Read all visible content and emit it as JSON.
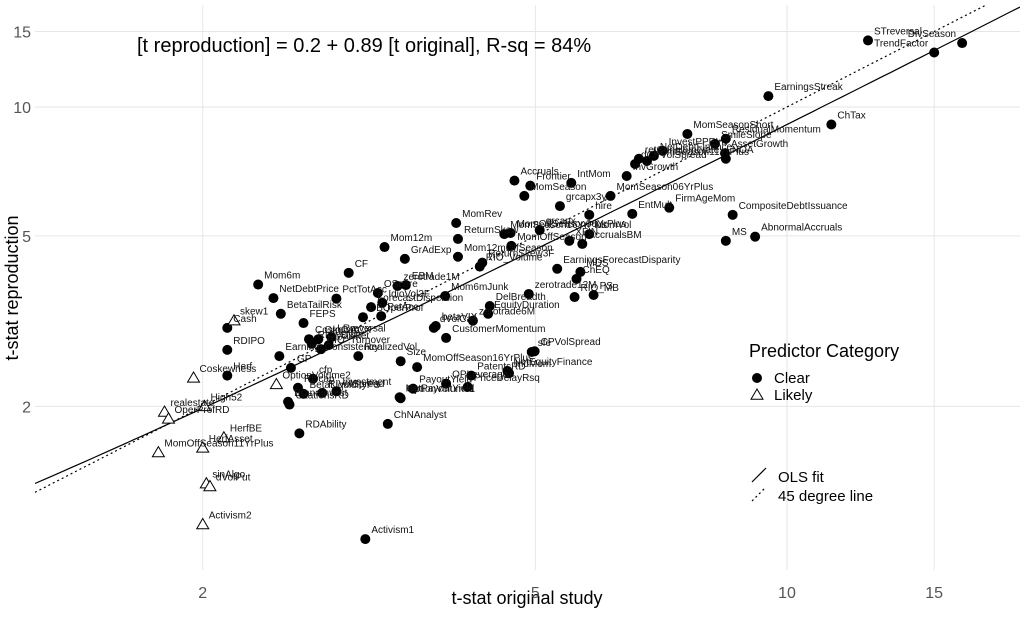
{
  "chart_data": {
    "type": "scatter",
    "log_x": true,
    "log_y": true,
    "grid": true,
    "annotation": "[t reproduction] = 0.2 + 0.89 [t original], R-sq = 84%",
    "x_label": "t-stat original study",
    "y_label": "t-stat reproduction",
    "xlim": [
      1.26,
      19
    ],
    "ylim": [
      0.83,
      17.3
    ],
    "xticks": [
      2,
      5,
      10,
      15
    ],
    "yticks": [
      2,
      5,
      10,
      15
    ],
    "fit": {
      "intercept": 0.2,
      "slope": 0.89
    },
    "legend_title": "Predictor Category",
    "lines": [
      {
        "name": "OLS fit",
        "kind": "fit"
      },
      {
        "name": "45 degree line",
        "kind": "identity"
      }
    ],
    "series": [
      {
        "name": "Clear",
        "marker": "circle",
        "color": "#000000",
        "labels": [
          "STreversal",
          "DivSeason",
          "TrendFactor",
          "EarningsStreak",
          "ChTax",
          "MomSeasonShort",
          "ResidualMomentum",
          "SmileSlope",
          "AssetGrowth",
          "NOA",
          "InvestPPEInv",
          "NetDebtFinance",
          "retConglomerate",
          "MomSeason11YrPlus",
          "InvGrowth",
          "dCPVolSpread",
          "Accruals",
          "Frontier",
          "IntMom",
          "MomSeason",
          "MomSeason06YrPlus",
          "grcapx3y",
          "hire",
          "FirmAgeMom",
          "EntMult",
          "CompositeDebtIssuance",
          "MS",
          "AbnormalAccruals",
          "MomVol",
          "MomOffSeason06YrPlus",
          "MomRev",
          "MomSeason16YrPlus",
          "grcapx",
          "ReturnSkew",
          "AccrualsBM",
          "XFIN",
          "Mom12m",
          "Mom12mOffSeason",
          "MomOffSeason",
          "ReturnSkew3F",
          "GrAdExp",
          "CF",
          "EBM",
          "PctTotAcc",
          "Mom6m",
          "NetDebtPrice",
          "BetaTailRisk",
          "OScore",
          "IdioVol3F",
          "CBOperProf",
          "PctAcc",
          "ForecastDispersion",
          "RIO_Volume",
          "EarningsForecastDisparity",
          "MDS",
          "ChEQ",
          "Mom6mJunk",
          "DelBreadth",
          "zerotrade12M",
          "RIO_MB",
          "PS",
          "EquityDuration",
          "zerotrade6M",
          "zerotrade1M",
          "betaVIX",
          "FEPS",
          "OrgCap",
          "CoskewACX",
          "LRreversal",
          "Cash",
          "RDIPO",
          "dVolCall",
          "CustomerMomentum",
          "CPVolSpread",
          "RIO_Disp",
          "RIO_Turnover",
          "MaxRet",
          "EarningsConsistency",
          "GP",
          "Herf",
          "RealizedVol",
          "cfp",
          "MomOffSeason16YrPlus",
          "NetEquityFinance",
          "sfe",
          "IndMom",
          "Size",
          "PriceDelayRsq",
          "OPLeverage",
          "PatentsRD",
          "RDcap",
          "Investment",
          "NetPayoutYield",
          "PayoutYield",
          "BrandInvest",
          "CitationsRD",
          "RIVolSpread",
          "BetaLiquidityPS",
          "RDAbility",
          "ChNAnalyst",
          "OptionVolume1",
          "Activism1"
        ],
        "x": [
          12.5,
          16.2,
          15.0,
          9.5,
          11.3,
          7.6,
          8.45,
          8.2,
          8.43,
          8.45,
          7.1,
          6.93,
          6.65,
          6.8,
          6.43,
          6.58,
          4.72,
          4.93,
          5.52,
          4.85,
          6.15,
          5.35,
          5.8,
          7.23,
          6.53,
          8.61,
          8.45,
          9.16,
          5.8,
          4.67,
          4.02,
          4.59,
          5.06,
          4.04,
          5.69,
          5.49,
          3.3,
          4.04,
          4.68,
          4.32,
          3.49,
          2.99,
          3.5,
          2.89,
          2.33,
          2.43,
          2.48,
          3.24,
          3.28,
          3.11,
          3.27,
          3.18,
          4.29,
          5.31,
          5.66,
          5.6,
          3.9,
          4.41,
          4.91,
          5.57,
          5.87,
          4.39,
          4.21,
          3.42,
          3.8,
          2.64,
          2.75,
          2.68,
          2.85,
          2.14,
          2.14,
          3.78,
          3.91,
          4.99,
          2.7,
          2.77,
          2.83,
          2.47,
          2.55,
          2.14,
          3.07,
          2.71,
          3.61,
          4.63,
          4.95,
          4.65,
          3.45,
          4.15,
          3.91,
          4.19,
          2.6,
          2.89,
          3.44,
          3.57,
          2.53,
          2.54,
          2.78,
          2.64,
          2.61,
          3.33,
          3.45,
          3.13
        ],
        "y": [
          14.3,
          14.1,
          13.4,
          10.6,
          9.1,
          8.65,
          8.43,
          8.2,
          7.8,
          7.57,
          7.9,
          7.69,
          7.57,
          7.48,
          6.9,
          7.36,
          6.73,
          6.55,
          6.65,
          6.2,
          6.2,
          5.87,
          5.6,
          5.82,
          5.63,
          5.6,
          4.87,
          4.98,
          5.05,
          5.08,
          5.36,
          5.05,
          5.16,
          4.92,
          4.79,
          4.87,
          4.71,
          4.47,
          4.74,
          4.33,
          4.42,
          4.1,
          3.84,
          3.57,
          3.85,
          3.58,
          3.29,
          3.68,
          3.49,
          3.23,
          3.25,
          3.41,
          4.24,
          4.19,
          4.12,
          3.97,
          3.62,
          3.43,
          3.66,
          3.6,
          3.64,
          3.29,
          3.17,
          3.82,
          3.08,
          3.13,
          2.87,
          2.87,
          2.9,
          3.05,
          2.71,
          3.05,
          2.89,
          2.69,
          2.8,
          2.72,
          2.78,
          2.62,
          2.46,
          2.36,
          2.62,
          2.32,
          2.47,
          2.42,
          2.68,
          2.39,
          2.55,
          2.22,
          2.26,
          2.36,
          2.21,
          2.17,
          2.1,
          2.2,
          2.05,
          2.02,
          2.15,
          2.14,
          1.73,
          1.82,
          2.09,
          0.98
        ]
      },
      {
        "name": "Likely",
        "marker": "triangle",
        "color": "#000000",
        "labels": [
          "skew1",
          "Coskewness",
          "OptionVolume2",
          "realestate",
          "High52",
          "OperProfRD",
          "HerfBE",
          "MomOffSeason11YrPlus",
          "HerfAsset",
          "sinAlgo",
          "dVolPut",
          "Activism2"
        ],
        "x": [
          2.18,
          1.95,
          2.45,
          1.8,
          2.01,
          1.82,
          2.12,
          1.77,
          2.0,
          2.02,
          2.04,
          2.0
        ],
        "y": [
          3.17,
          2.33,
          2.25,
          1.94,
          2.0,
          1.87,
          1.69,
          1.56,
          1.6,
          1.32,
          1.3,
          1.06
        ]
      }
    ]
  }
}
